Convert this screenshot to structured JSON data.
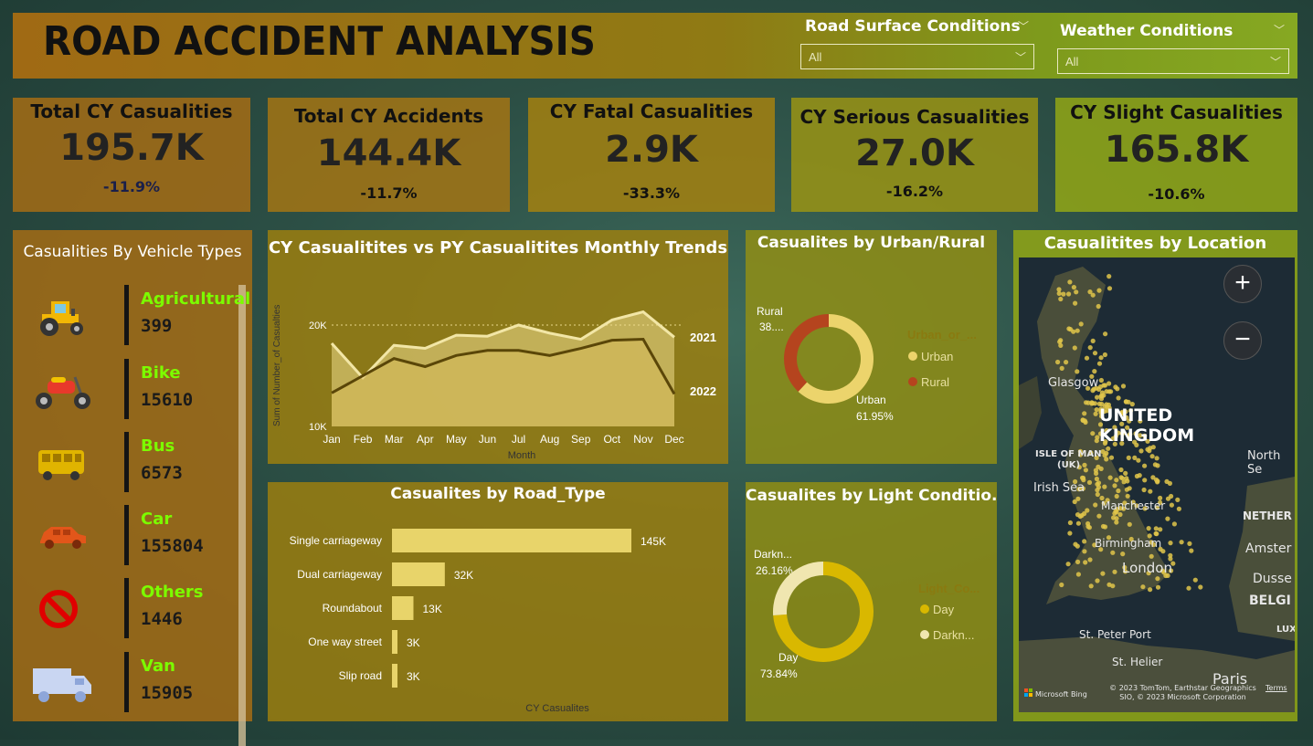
{
  "header": {
    "title": "ROAD ACCIDENT ANALYSIS"
  },
  "slicers": {
    "road": {
      "label": "Road Surface Conditions",
      "value": "All"
    },
    "weather": {
      "label": "Weather Conditions",
      "value": "All"
    }
  },
  "kpis": [
    {
      "title": "Total CY Casualities",
      "value": "195.7K",
      "change": "-11.9%"
    },
    {
      "title": "Total CY Accidents",
      "value": "144.4K",
      "change": "-11.7%"
    },
    {
      "title": "CY Fatal Casualities",
      "value": "2.9K",
      "change": "-33.3%"
    },
    {
      "title": "CY Serious Casualities",
      "value": "27.0K",
      "change": "-16.2%"
    },
    {
      "title": "CY Slight Casualities",
      "value": "165.8K",
      "change": "-10.6%"
    }
  ],
  "vehicle_types": {
    "title": "Casualities By Vehicle Types",
    "items": [
      {
        "name": "Agricultural",
        "value": "399",
        "icon": "tractor-icon"
      },
      {
        "name": "Bike",
        "value": "15610",
        "icon": "motorbike-icon"
      },
      {
        "name": "Bus",
        "value": "6573",
        "icon": "bus-icon"
      },
      {
        "name": "Car",
        "value": "155804",
        "icon": "car-icon"
      },
      {
        "name": "Others",
        "value": "1446",
        "icon": "prohibited-icon"
      },
      {
        "name": "Van",
        "value": "15905",
        "icon": "van-icon"
      }
    ]
  },
  "trend": {
    "title": "CY Casualitites vs PY Casualitites Monthly Trends",
    "ylabel": "Sum of Number_of Casualties",
    "xlabel": "Month",
    "yticks": [
      "20K",
      "10K"
    ],
    "series_labels": [
      "2021",
      "2022"
    ]
  },
  "urban_rural": {
    "title": "Casualites by Urban/Rural",
    "legend_title": "Urban_or_...",
    "legend": [
      "Urban",
      "Rural"
    ],
    "label_rural": "Rural",
    "label_rural_pct": "38....",
    "label_urban": "Urban",
    "label_urban_pct": "61.95%"
  },
  "road_type": {
    "title": "Casualites by Road_Type",
    "xlabel": "CY Casualites"
  },
  "light": {
    "title": "Casualites by Light Conditio...",
    "legend_title": "Light_Co...",
    "legend": [
      "Day",
      "Darkn..."
    ],
    "label_dark": "Darkn...",
    "label_dark_pct": "26.16%",
    "label_day": "Day",
    "label_day_pct": "73.84%"
  },
  "map": {
    "title": "Casualitites by Location",
    "labels": {
      "glasgow": "Glasgow",
      "uk": "UNITED KINGDOM",
      "isle_of_man": "ISLE OF MAN",
      "isle_uk": "(UK)",
      "irish_sea": "Irish Sea",
      "manchester": "Manchester",
      "birmingham": "Birmingham",
      "london": "London",
      "north_sea": "North Se",
      "nether": "NETHER",
      "amster": "Amster",
      "dusse": "Dusse",
      "belgi": "BELGI",
      "lux": "LUX",
      "st_peter": "St. Peter Port",
      "st_helier": "St. Helier",
      "paris": "Paris"
    },
    "attribution": "© 2023 TomTom, Earthstar Geographics SIO, © 2023 Microsoft Corporation",
    "terms": "Terms",
    "bing": "Microsoft Bing"
  },
  "chart_data": [
    {
      "type": "area",
      "title": "CY Casualitites vs PY Casualitites Monthly Trends",
      "x": [
        "Jan",
        "Feb",
        "Mar",
        "Apr",
        "May",
        "Jun",
        "Jul",
        "Aug",
        "Sep",
        "Oct",
        "Nov",
        "Dec"
      ],
      "xlabel": "Month",
      "ylabel": "Sum of Number_of Casualties",
      "ylim": [
        10000,
        20000
      ],
      "series": [
        {
          "name": "2021",
          "values": [
            18200,
            14800,
            18000,
            17700,
            19000,
            18900,
            20000,
            19200,
            18600,
            20500,
            21300,
            18800
          ]
        },
        {
          "name": "2022",
          "values": [
            13300,
            15000,
            16700,
            15900,
            17000,
            17500,
            17500,
            17000,
            17700,
            18500,
            18600,
            13200
          ]
        }
      ]
    },
    {
      "type": "bar",
      "title": "Casualites by Road_Type",
      "categories": [
        "Single carriageway",
        "Dual carriageway",
        "Roundabout",
        "One way street",
        "Slip road"
      ],
      "values": [
        145000,
        32000,
        13000,
        3000,
        3000
      ],
      "data_labels": [
        "145K",
        "32K",
        "13K",
        "3K",
        "3K"
      ],
      "xlabel": "CY Casualites",
      "color": "#e8d46a"
    },
    {
      "type": "pie",
      "title": "Casualites by Urban/Rural",
      "categories": [
        "Urban",
        "Rural"
      ],
      "values": [
        61.95,
        38.05
      ],
      "colors": [
        "#ecd46c",
        "#b5441e"
      ]
    },
    {
      "type": "pie",
      "title": "Casualites by Light Conditio...",
      "categories": [
        "Day",
        "Darkn..."
      ],
      "values": [
        73.84,
        26.16
      ],
      "colors": [
        "#d9b800",
        "#f0e6b0"
      ]
    }
  ]
}
